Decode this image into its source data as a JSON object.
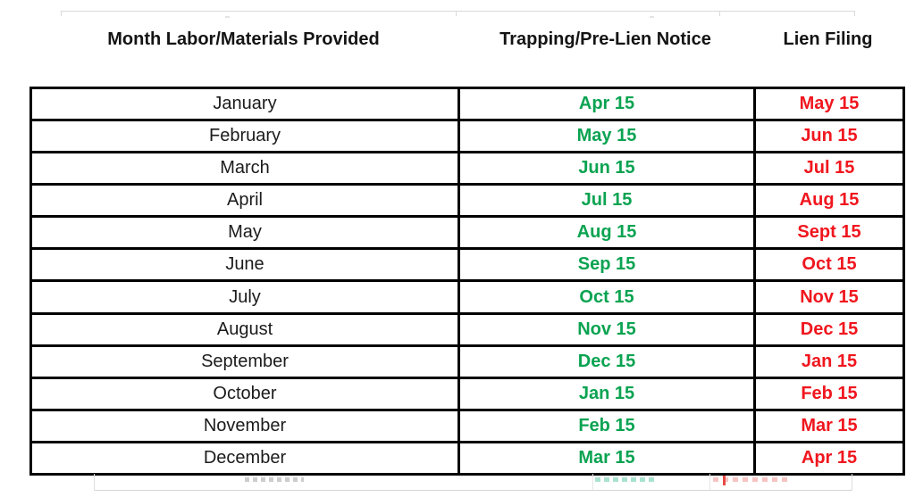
{
  "header": {
    "col1": "Month Labor/Materials Provided",
    "col2": "Trapping/Pre-Lien Notice",
    "col3": "Lien Filing"
  },
  "colors": {
    "notice_green": "#0aa351",
    "filing_red": "#f0161e",
    "month_ink": "#1b1b1b",
    "table_border": "#000000",
    "ghost_gray": "#d9d9d9"
  },
  "table": {
    "rows": [
      {
        "month": "January",
        "notice": "Apr 15",
        "filing": "May 15"
      },
      {
        "month": "February",
        "notice": "May 15",
        "filing": "Jun 15"
      },
      {
        "month": "March",
        "notice": "Jun 15",
        "filing": "Jul 15"
      },
      {
        "month": "April",
        "notice": "Jul 15",
        "filing": "Aug 15"
      },
      {
        "month": "May",
        "notice": "Aug 15",
        "filing": "Sept 15"
      },
      {
        "month": "June",
        "notice": "Sep 15",
        "filing": "Oct 15"
      },
      {
        "month": "July",
        "notice": "Oct 15",
        "filing": "Nov 15"
      },
      {
        "month": "August",
        "notice": "Nov 15",
        "filing": "Dec 15"
      },
      {
        "month": "September",
        "notice": "Dec 15",
        "filing": "Jan 15"
      },
      {
        "month": "October",
        "notice": "Jan 15",
        "filing": "Feb 15"
      },
      {
        "month": "November",
        "notice": "Feb 15",
        "filing": "Mar 15"
      },
      {
        "month": "December",
        "notice": "Mar 15",
        "filing": "Apr 15"
      }
    ]
  }
}
